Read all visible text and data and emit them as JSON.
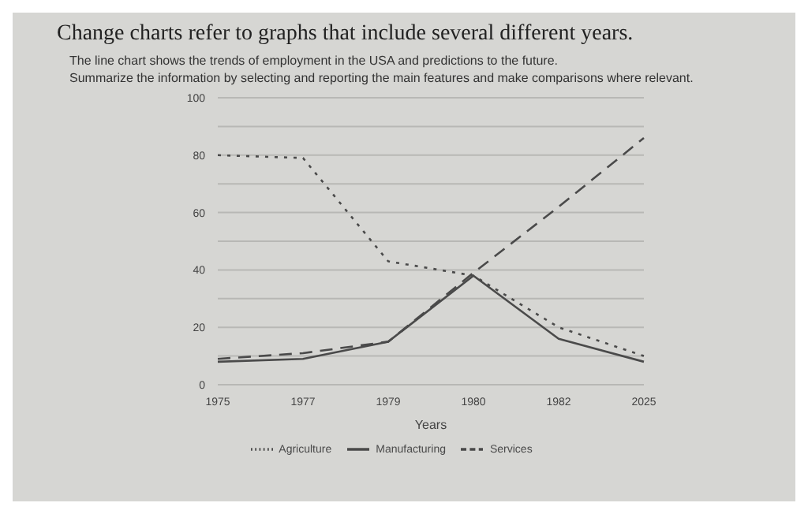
{
  "chart_data": {
    "type": "line",
    "title": "Change charts refer to graphs that include several different years.",
    "subtitle": "The line chart shows the trends of employment in the USA and predictions to the future.",
    "annotations": [
      "Summarize the information by selecting and reporting the main features and make comparisons where relevant."
    ],
    "categories": [
      "1975",
      "1977",
      "1979",
      "1980",
      "1982",
      "2025"
    ],
    "xlabel": "Years",
    "series": [
      {
        "name": "Manufacturing",
        "color": "#4a4a4a",
        "line_style": "solid",
        "values": [
          8,
          9,
          15,
          38,
          16,
          8
        ]
      },
      {
        "name": "Services",
        "color": "#4a4a4a",
        "line_style": "dashed",
        "values": [
          9,
          11,
          15,
          39,
          62,
          86
        ]
      },
      {
        "name": "Agriculture",
        "color": "#4a4a4a",
        "line_style": "dotted",
        "values": [
          80,
          79,
          43,
          38,
          20,
          10
        ]
      }
    ],
    "ylim": [
      0,
      100
    ],
    "yticks": [
      0,
      {
        "value": 10,
        "label": null
      },
      20,
      {
        "value": 30,
        "label": null
      },
      40,
      {
        "value": 50,
        "label": null
      },
      60,
      {
        "value": 70,
        "label": null
      },
      80,
      {
        "value": 90,
        "label": null
      },
      100
    ],
    "grid": "y",
    "legend": "bottom",
    "marker": "none"
  }
}
